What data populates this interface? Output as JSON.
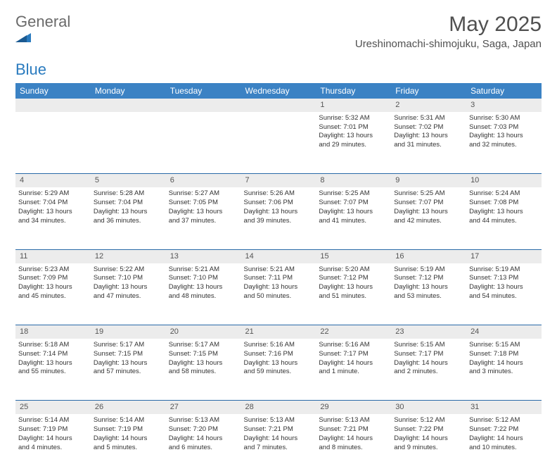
{
  "brand": {
    "text1": "General",
    "text2": "Blue",
    "color_gray": "#6a6a6a",
    "color_blue": "#2a7bbf"
  },
  "title": "May 2025",
  "location": "Ureshinomachi-shimojuku, Saga, Japan",
  "colors": {
    "header_bg": "#3b82c4",
    "header_text": "#ffffff",
    "daynum_bg": "#ececec",
    "divider": "#2a6aa8",
    "body_text": "#333333",
    "title_text": "#505050"
  },
  "daynames": [
    "Sunday",
    "Monday",
    "Tuesday",
    "Wednesday",
    "Thursday",
    "Friday",
    "Saturday"
  ],
  "weeks": [
    {
      "nums": [
        "",
        "",
        "",
        "",
        "1",
        "2",
        "3"
      ],
      "cells": [
        null,
        null,
        null,
        null,
        {
          "sunrise": "Sunrise: 5:32 AM",
          "sunset": "Sunset: 7:01 PM",
          "day1": "Daylight: 13 hours",
          "day2": "and 29 minutes."
        },
        {
          "sunrise": "Sunrise: 5:31 AM",
          "sunset": "Sunset: 7:02 PM",
          "day1": "Daylight: 13 hours",
          "day2": "and 31 minutes."
        },
        {
          "sunrise": "Sunrise: 5:30 AM",
          "sunset": "Sunset: 7:03 PM",
          "day1": "Daylight: 13 hours",
          "day2": "and 32 minutes."
        }
      ]
    },
    {
      "nums": [
        "4",
        "5",
        "6",
        "7",
        "8",
        "9",
        "10"
      ],
      "cells": [
        {
          "sunrise": "Sunrise: 5:29 AM",
          "sunset": "Sunset: 7:04 PM",
          "day1": "Daylight: 13 hours",
          "day2": "and 34 minutes."
        },
        {
          "sunrise": "Sunrise: 5:28 AM",
          "sunset": "Sunset: 7:04 PM",
          "day1": "Daylight: 13 hours",
          "day2": "and 36 minutes."
        },
        {
          "sunrise": "Sunrise: 5:27 AM",
          "sunset": "Sunset: 7:05 PM",
          "day1": "Daylight: 13 hours",
          "day2": "and 37 minutes."
        },
        {
          "sunrise": "Sunrise: 5:26 AM",
          "sunset": "Sunset: 7:06 PM",
          "day1": "Daylight: 13 hours",
          "day2": "and 39 minutes."
        },
        {
          "sunrise": "Sunrise: 5:25 AM",
          "sunset": "Sunset: 7:07 PM",
          "day1": "Daylight: 13 hours",
          "day2": "and 41 minutes."
        },
        {
          "sunrise": "Sunrise: 5:25 AM",
          "sunset": "Sunset: 7:07 PM",
          "day1": "Daylight: 13 hours",
          "day2": "and 42 minutes."
        },
        {
          "sunrise": "Sunrise: 5:24 AM",
          "sunset": "Sunset: 7:08 PM",
          "day1": "Daylight: 13 hours",
          "day2": "and 44 minutes."
        }
      ]
    },
    {
      "nums": [
        "11",
        "12",
        "13",
        "14",
        "15",
        "16",
        "17"
      ],
      "cells": [
        {
          "sunrise": "Sunrise: 5:23 AM",
          "sunset": "Sunset: 7:09 PM",
          "day1": "Daylight: 13 hours",
          "day2": "and 45 minutes."
        },
        {
          "sunrise": "Sunrise: 5:22 AM",
          "sunset": "Sunset: 7:10 PM",
          "day1": "Daylight: 13 hours",
          "day2": "and 47 minutes."
        },
        {
          "sunrise": "Sunrise: 5:21 AM",
          "sunset": "Sunset: 7:10 PM",
          "day1": "Daylight: 13 hours",
          "day2": "and 48 minutes."
        },
        {
          "sunrise": "Sunrise: 5:21 AM",
          "sunset": "Sunset: 7:11 PM",
          "day1": "Daylight: 13 hours",
          "day2": "and 50 minutes."
        },
        {
          "sunrise": "Sunrise: 5:20 AM",
          "sunset": "Sunset: 7:12 PM",
          "day1": "Daylight: 13 hours",
          "day2": "and 51 minutes."
        },
        {
          "sunrise": "Sunrise: 5:19 AM",
          "sunset": "Sunset: 7:12 PM",
          "day1": "Daylight: 13 hours",
          "day2": "and 53 minutes."
        },
        {
          "sunrise": "Sunrise: 5:19 AM",
          "sunset": "Sunset: 7:13 PM",
          "day1": "Daylight: 13 hours",
          "day2": "and 54 minutes."
        }
      ]
    },
    {
      "nums": [
        "18",
        "19",
        "20",
        "21",
        "22",
        "23",
        "24"
      ],
      "cells": [
        {
          "sunrise": "Sunrise: 5:18 AM",
          "sunset": "Sunset: 7:14 PM",
          "day1": "Daylight: 13 hours",
          "day2": "and 55 minutes."
        },
        {
          "sunrise": "Sunrise: 5:17 AM",
          "sunset": "Sunset: 7:15 PM",
          "day1": "Daylight: 13 hours",
          "day2": "and 57 minutes."
        },
        {
          "sunrise": "Sunrise: 5:17 AM",
          "sunset": "Sunset: 7:15 PM",
          "day1": "Daylight: 13 hours",
          "day2": "and 58 minutes."
        },
        {
          "sunrise": "Sunrise: 5:16 AM",
          "sunset": "Sunset: 7:16 PM",
          "day1": "Daylight: 13 hours",
          "day2": "and 59 minutes."
        },
        {
          "sunrise": "Sunrise: 5:16 AM",
          "sunset": "Sunset: 7:17 PM",
          "day1": "Daylight: 14 hours",
          "day2": "and 1 minute."
        },
        {
          "sunrise": "Sunrise: 5:15 AM",
          "sunset": "Sunset: 7:17 PM",
          "day1": "Daylight: 14 hours",
          "day2": "and 2 minutes."
        },
        {
          "sunrise": "Sunrise: 5:15 AM",
          "sunset": "Sunset: 7:18 PM",
          "day1": "Daylight: 14 hours",
          "day2": "and 3 minutes."
        }
      ]
    },
    {
      "nums": [
        "25",
        "26",
        "27",
        "28",
        "29",
        "30",
        "31"
      ],
      "cells": [
        {
          "sunrise": "Sunrise: 5:14 AM",
          "sunset": "Sunset: 7:19 PM",
          "day1": "Daylight: 14 hours",
          "day2": "and 4 minutes."
        },
        {
          "sunrise": "Sunrise: 5:14 AM",
          "sunset": "Sunset: 7:19 PM",
          "day1": "Daylight: 14 hours",
          "day2": "and 5 minutes."
        },
        {
          "sunrise": "Sunrise: 5:13 AM",
          "sunset": "Sunset: 7:20 PM",
          "day1": "Daylight: 14 hours",
          "day2": "and 6 minutes."
        },
        {
          "sunrise": "Sunrise: 5:13 AM",
          "sunset": "Sunset: 7:21 PM",
          "day1": "Daylight: 14 hours",
          "day2": "and 7 minutes."
        },
        {
          "sunrise": "Sunrise: 5:13 AM",
          "sunset": "Sunset: 7:21 PM",
          "day1": "Daylight: 14 hours",
          "day2": "and 8 minutes."
        },
        {
          "sunrise": "Sunrise: 5:12 AM",
          "sunset": "Sunset: 7:22 PM",
          "day1": "Daylight: 14 hours",
          "day2": "and 9 minutes."
        },
        {
          "sunrise": "Sunrise: 5:12 AM",
          "sunset": "Sunset: 7:22 PM",
          "day1": "Daylight: 14 hours",
          "day2": "and 10 minutes."
        }
      ]
    }
  ]
}
